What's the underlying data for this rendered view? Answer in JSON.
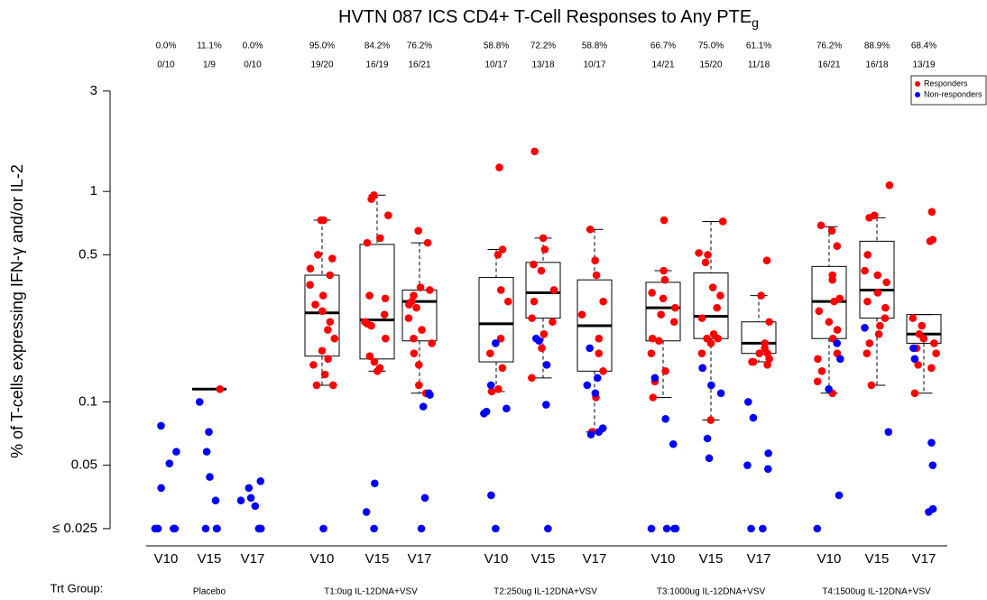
{
  "chart_data": {
    "type": "box",
    "title": "HVTN 087 ICS CD4+ T-Cell Responses to Any PTE",
    "title_subscript": "g",
    "ylabel": "% of T-cells expressing IFN-γ and/or IL-2",
    "group_label": "Trt Group:",
    "log_scale": true,
    "ylim": [
      0.0207,
      3.34
    ],
    "yticks": [
      {
        "value": 0.025,
        "label": "≤ 0.025"
      },
      0.05,
      0.1,
      0.5,
      1,
      3
    ],
    "legend": {
      "position": "topright",
      "items": [
        {
          "name": "Responders",
          "color": "#ff0000"
        },
        {
          "name": "Non-responders",
          "color": "#0000ff"
        }
      ]
    },
    "groups": [
      {
        "name": "Placebo",
        "visits": [
          {
            "label": "V10",
            "response_rate": "0.0%",
            "responders_ratio": "0/10",
            "box": null,
            "responders": [],
            "non_responders": [
              0.077,
              0.058,
              0.051,
              0.039,
              0.025,
              0.025,
              0.025,
              0.025,
              0.025,
              0.025
            ]
          },
          {
            "label": "V15",
            "response_rate": "11.1%",
            "responders_ratio": "1/9",
            "box": {
              "median": 0.115
            },
            "responders": [
              0.115
            ],
            "non_responders": [
              0.1,
              0.072,
              0.058,
              0.044,
              0.034,
              0.025,
              0.025,
              0.025
            ]
          },
          {
            "label": "V17",
            "response_rate": "0.0%",
            "responders_ratio": "0/10",
            "box": null,
            "responders": [],
            "non_responders": [
              0.042,
              0.039,
              0.035,
              0.032,
              0.034,
              0.025,
              0.025,
              0.025,
              0.025,
              0.025
            ]
          }
        ]
      },
      {
        "name": "T1:0ug IL-12DNA+VSV",
        "visits": [
          {
            "label": "V10",
            "response_rate": "95.0%",
            "responders_ratio": "19/20",
            "box": {
              "whisker_low": 0.12,
              "q1": 0.165,
              "median": 0.265,
              "q3": 0.4,
              "whisker_high": 0.73
            },
            "responders": [
              0.73,
              0.73,
              0.5,
              0.48,
              0.43,
              0.4,
              0.36,
              0.32,
              0.29,
              0.27,
              0.24,
              0.22,
              0.2,
              0.175,
              0.16,
              0.15,
              0.135,
              0.12,
              0.12
            ],
            "non_responders": [
              0.025
            ]
          },
          {
            "label": "V15",
            "response_rate": "84.2%",
            "responders_ratio": "16/19",
            "box": {
              "whisker_low": 0.14,
              "q1": 0.16,
              "median": 0.245,
              "q3": 0.56,
              "whisker_high": 0.96
            },
            "responders": [
              0.96,
              0.92,
              0.77,
              0.6,
              0.57,
              0.32,
              0.31,
              0.26,
              0.24,
              0.235,
              0.23,
              0.2,
              0.165,
              0.155,
              0.145,
              0.14
            ],
            "non_responders": [
              0.041,
              0.03,
              0.025
            ]
          },
          {
            "label": "V17",
            "response_rate": "76.2%",
            "responders_ratio": "16/21",
            "box": {
              "whisker_low": 0.11,
              "q1": 0.195,
              "median": 0.3,
              "q3": 0.34,
              "whisker_high": 0.57
            },
            "responders": [
              0.65,
              0.57,
              0.35,
              0.34,
              0.32,
              0.3,
              0.29,
              0.28,
              0.25,
              0.22,
              0.2,
              0.19,
              0.17,
              0.15,
              0.12,
              0.11
            ],
            "non_responders": [
              0.11,
              0.108,
              0.095,
              0.035,
              0.025
            ]
          }
        ]
      },
      {
        "name": "T2:250ug IL-12DNA+VSV",
        "visits": [
          {
            "label": "V10",
            "response_rate": "58.8%",
            "responders_ratio": "10/17",
            "box": {
              "whisker_low": 0.112,
              "q1": 0.155,
              "median": 0.235,
              "q3": 0.39,
              "whisker_high": 0.53
            },
            "responders": [
              1.3,
              0.53,
              0.5,
              0.34,
              0.3,
              0.2,
              0.17,
              0.145,
              0.115,
              0.112
            ],
            "non_responders": [
              0.19,
              0.12,
              0.093,
              0.09,
              0.088,
              0.036,
              0.025
            ]
          },
          {
            "label": "V15",
            "response_rate": "72.2%",
            "responders_ratio": "13/18",
            "box": {
              "whisker_low": 0.13,
              "q1": 0.25,
              "median": 0.33,
              "q3": 0.46,
              "whisker_high": 0.6
            },
            "responders": [
              1.55,
              0.6,
              0.53,
              0.45,
              0.42,
              0.34,
              0.3,
              0.25,
              0.24,
              0.21,
              0.18,
              0.15,
              0.13
            ],
            "non_responders": [
              0.2,
              0.195,
              0.15,
              0.097,
              0.025
            ]
          },
          {
            "label": "V17",
            "response_rate": "58.8%",
            "responders_ratio": "10/17",
            "box": {
              "whisker_low": 0.072,
              "q1": 0.14,
              "median": 0.23,
              "q3": 0.38,
              "whisker_high": 0.66
            },
            "responders": [
              0.66,
              0.47,
              0.4,
              0.3,
              0.26,
              0.2,
              0.17,
              0.14,
              0.105,
              0.072
            ],
            "non_responders": [
              0.18,
              0.13,
              0.12,
              0.11,
              0.075,
              0.072,
              0.07
            ]
          }
        ]
      },
      {
        "name": "T3:1000ug IL-12DNA+VSV",
        "visits": [
          {
            "label": "V10",
            "response_rate": "66.7%",
            "responders_ratio": "14/21",
            "box": {
              "whisker_low": 0.105,
              "q1": 0.195,
              "median": 0.28,
              "q3": 0.37,
              "whisker_high": 0.42
            },
            "responders": [
              0.73,
              0.42,
              0.38,
              0.33,
              0.31,
              0.28,
              0.26,
              0.24,
              0.2,
              0.195,
              0.17,
              0.14,
              0.125,
              0.105
            ],
            "non_responders": [
              0.13,
              0.083,
              0.063,
              0.025,
              0.025,
              0.025,
              0.025
            ]
          },
          {
            "label": "V15",
            "response_rate": "75.0%",
            "responders_ratio": "15/20",
            "box": {
              "whisker_low": 0.082,
              "q1": 0.2,
              "median": 0.255,
              "q3": 0.41,
              "whisker_high": 0.72
            },
            "responders": [
              0.72,
              0.51,
              0.5,
              0.46,
              0.35,
              0.32,
              0.28,
              0.25,
              0.21,
              0.2,
              0.2,
              0.19,
              0.17,
              0.145,
              0.082
            ],
            "non_responders": [
              0.145,
              0.12,
              0.11,
              0.067,
              0.054
            ]
          },
          {
            "label": "V17",
            "response_rate": "61.1%",
            "responders_ratio": "11/18",
            "box": {
              "whisker_low": 0.155,
              "q1": 0.17,
              "median": 0.19,
              "q3": 0.24,
              "whisker_high": 0.32
            },
            "responders": [
              0.47,
              0.32,
              0.24,
              0.19,
              0.18,
              0.17,
              0.17,
              0.16,
              0.155,
              0.155,
              0.15
            ],
            "non_responders": [
              0.1,
              0.084,
              0.057,
              0.05,
              0.048,
              0.025,
              0.025
            ]
          }
        ]
      },
      {
        "name": "T4:1500ug IL-12DNA+VSV",
        "visits": [
          {
            "label": "V10",
            "response_rate": "76.2%",
            "responders_ratio": "16/21",
            "box": {
              "whisker_low": 0.11,
              "q1": 0.2,
              "median": 0.3,
              "q3": 0.44,
              "whisker_high": 0.68
            },
            "responders": [
              0.69,
              0.65,
              0.55,
              0.4,
              0.38,
              0.31,
              0.3,
              0.27,
              0.24,
              0.22,
              0.2,
              0.17,
              0.16,
              0.14,
              0.125,
              0.11
            ],
            "non_responders": [
              0.19,
              0.16,
              0.115,
              0.036,
              0.025
            ]
          },
          {
            "label": "V15",
            "response_rate": "88.9%",
            "responders_ratio": "16/18",
            "box": {
              "whisker_low": 0.12,
              "q1": 0.25,
              "median": 0.34,
              "q3": 0.58,
              "whisker_high": 0.75
            },
            "responders": [
              1.07,
              0.77,
              0.75,
              0.5,
              0.42,
              0.4,
              0.37,
              0.33,
              0.3,
              0.28,
              0.25,
              0.23,
              0.21,
              0.19,
              0.17,
              0.12
            ],
            "non_responders": [
              0.225,
              0.072
            ]
          },
          {
            "label": "V17",
            "response_rate": "68.4%",
            "responders_ratio": "13/19",
            "box": {
              "whisker_low": 0.11,
              "q1": 0.19,
              "median": 0.21,
              "q3": 0.26,
              "whisker_high": 0.26
            },
            "responders": [
              0.8,
              0.59,
              0.58,
              0.25,
              0.23,
              0.21,
              0.2,
              0.19,
              0.18,
              0.17,
              0.15,
              0.145,
              0.11
            ],
            "non_responders": [
              0.18,
              0.16,
              0.064,
              0.05,
              0.031,
              0.03
            ]
          }
        ]
      }
    ]
  }
}
